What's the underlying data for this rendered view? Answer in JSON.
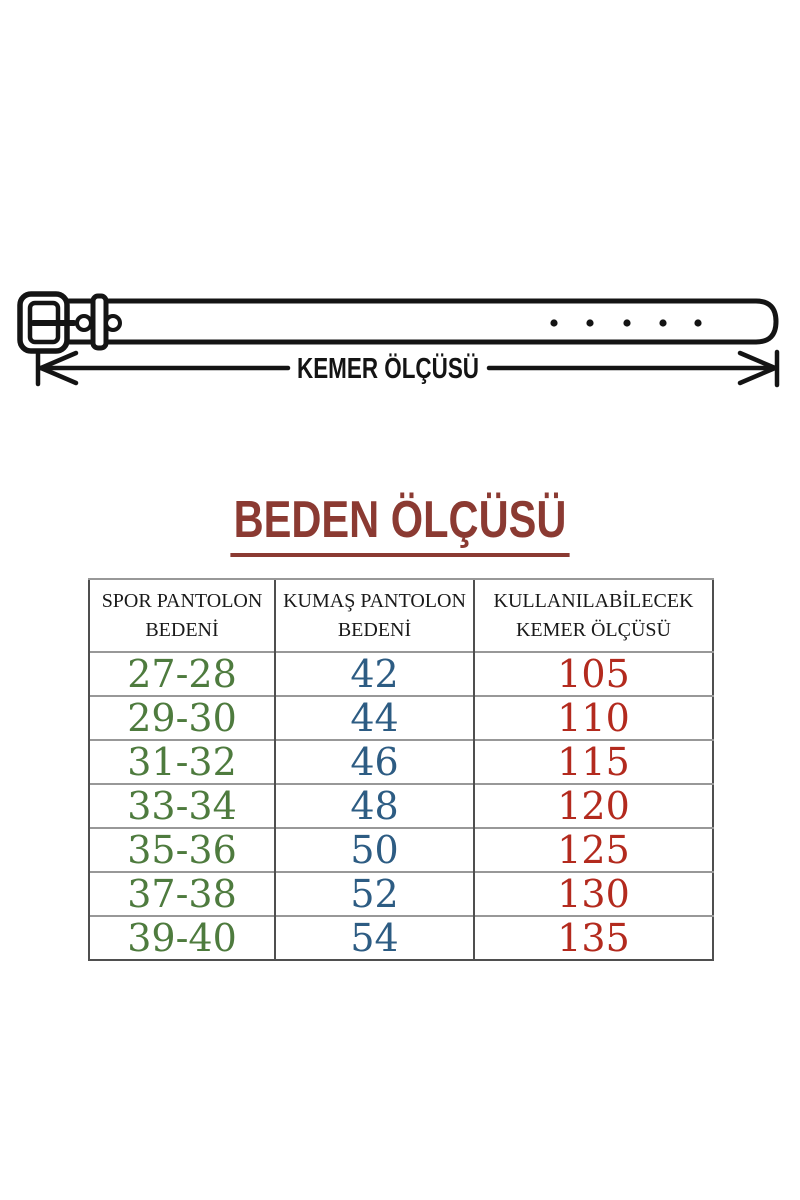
{
  "belt_diagram": {
    "dimension_label": "KEMER ÖLÇÜSÜ",
    "hole_count_right": 5,
    "hole_count_near_buckle": 2
  },
  "size_chart": {
    "title": "BEDEN ÖLÇÜSÜ",
    "columns": [
      {
        "id": "spor",
        "header": [
          "SPOR PANTOLON",
          "BEDENİ"
        ],
        "value_color": "#4e7b3e"
      },
      {
        "id": "kumas",
        "header": [
          "KUMAŞ PANTOLON",
          "BEDENİ"
        ],
        "value_color": "#2d5c83"
      },
      {
        "id": "kemer",
        "header": [
          "KULLANILABİLECEK",
          "KEMER ÖLÇÜSÜ"
        ],
        "value_color": "#b32a1e"
      }
    ],
    "rows": [
      [
        "27-28",
        "42",
        "105"
      ],
      [
        "29-30",
        "44",
        "110"
      ],
      [
        "31-32",
        "46",
        "115"
      ],
      [
        "33-34",
        "48",
        "120"
      ],
      [
        "35-36",
        "50",
        "125"
      ],
      [
        "37-38",
        "52",
        "130"
      ],
      [
        "39-40",
        "54",
        "135"
      ]
    ]
  },
  "chart_data": {
    "type": "table",
    "title": "BEDEN ÖLÇÜSÜ",
    "columns": [
      "SPOR PANTOLON BEDENİ",
      "KUMAŞ PANTOLON BEDENİ",
      "KULLANILABİLECEK KEMER ÖLÇÜSÜ"
    ],
    "rows": [
      [
        "27-28",
        "42",
        "105"
      ],
      [
        "29-30",
        "44",
        "110"
      ],
      [
        "31-32",
        "46",
        "115"
      ],
      [
        "33-34",
        "48",
        "120"
      ],
      [
        "35-36",
        "50",
        "125"
      ],
      [
        "37-38",
        "52",
        "130"
      ],
      [
        "39-40",
        "54",
        "135"
      ]
    ],
    "notes": "Belt size diagram above table labelled KEMER ÖLÇÜSÜ"
  },
  "colors": {
    "title": "#8b3a32",
    "diagram_ink": "#141414",
    "table_border_outer": "#4f4f4f",
    "table_border_inner": "#989898",
    "spor_value": "#4e7b3e",
    "kumas_value": "#2d5c83",
    "kemer_value": "#b32a1e"
  }
}
